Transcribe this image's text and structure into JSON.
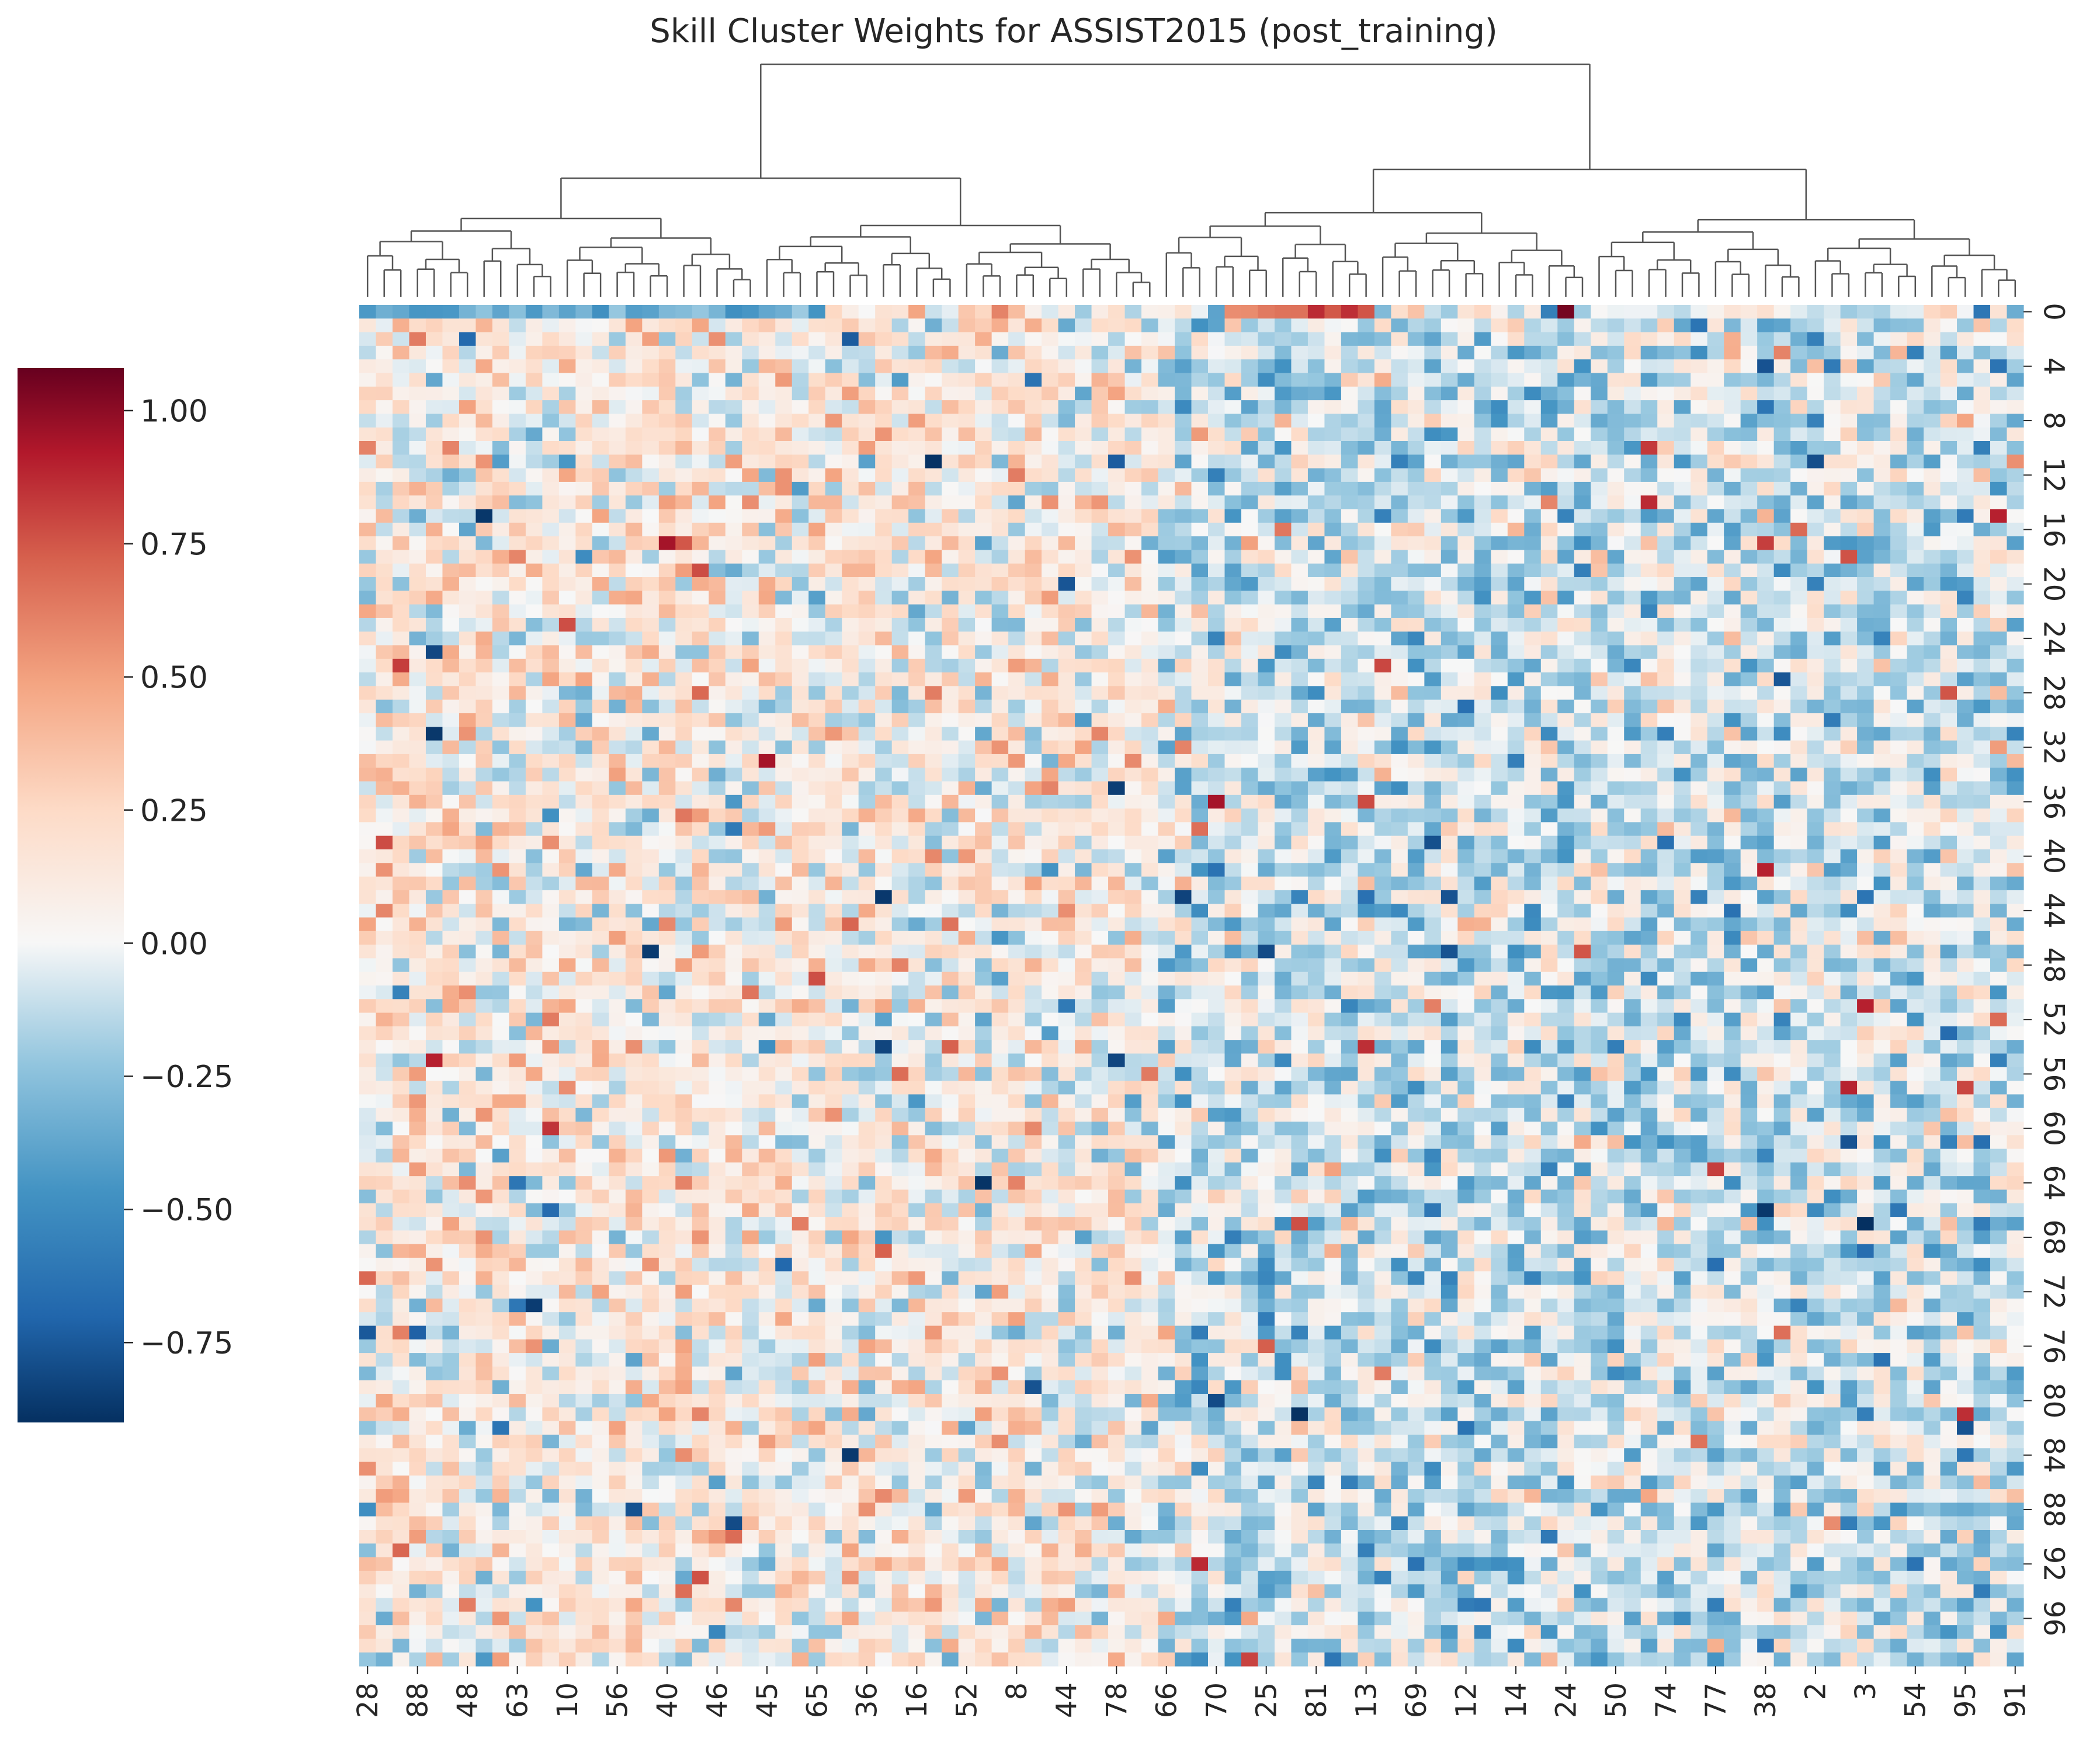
{
  "chart_data": {
    "type": "heatmap",
    "title": "Skill Cluster Weights for ASSIST2015 (post_training)",
    "xlabel": "",
    "ylabel": "",
    "n_rows": 100,
    "n_cols": 100,
    "row_tick_labels": [
      "0",
      "4",
      "8",
      "12",
      "16",
      "20",
      "24",
      "28",
      "32",
      "36",
      "40",
      "44",
      "48",
      "52",
      "56",
      "60",
      "64",
      "68",
      "72",
      "76",
      "80",
      "84",
      "88",
      "92",
      "96"
    ],
    "column_tick_labels": [
      "28",
      "88",
      "48",
      "63",
      "10",
      "56",
      "40",
      "46",
      "45",
      "65",
      "36",
      "16",
      "52",
      "8",
      "44",
      "78",
      "66",
      "70",
      "25",
      "81",
      "13",
      "69",
      "12",
      "14",
      "24",
      "50",
      "74",
      "77",
      "38",
      "2",
      "3",
      "54",
      "95",
      "91"
    ],
    "colorbar": {
      "colormap": "RdBu_r",
      "vmin": -0.9,
      "vmax": 1.08,
      "ticks": [
        "1.00",
        "0.75",
        "0.50",
        "0.25",
        "0.00",
        "−0.25",
        "−0.50",
        "−0.75"
      ],
      "tick_values": [
        1.0,
        0.75,
        0.5,
        0.25,
        0.0,
        -0.25,
        -0.5,
        -0.75
      ],
      "position": "left"
    },
    "dendrogram": "column clustering shown on top",
    "cell_value_summary": {
      "typical_range": [
        -0.5,
        0.5
      ],
      "strong_positive_examples": [
        {
          "row": 0,
          "column_label": "24",
          "value": 1.05
        },
        {
          "row": 17,
          "column_label": "40",
          "value": 0.95
        },
        {
          "row": 33,
          "column_label": "45",
          "value": 0.95
        },
        {
          "row": 36,
          "column_label": "70",
          "value": 0.95
        },
        {
          "row": 51,
          "column_label": "3",
          "value": 0.9
        }
      ],
      "strong_negative_examples": [
        {
          "row": 67,
          "column_label": "3",
          "value": -0.9
        },
        {
          "row": 47,
          "column_label": "25",
          "value": -0.8
        },
        {
          "row": 80,
          "column_label": "70",
          "value": -0.8
        }
      ]
    }
  }
}
